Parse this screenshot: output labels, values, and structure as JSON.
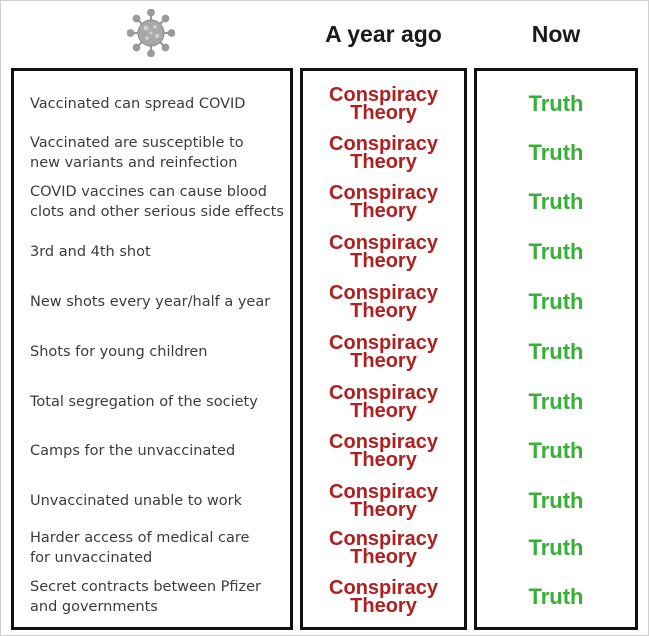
{
  "header": {
    "icon": "virus-icon",
    "col_before": "A year ago",
    "col_now": "Now"
  },
  "colors": {
    "conspiracy": "#b02020",
    "truth": "#36b036",
    "border": "#111111"
  },
  "rows": [
    {
      "label_1": "Vaccinated can spread COVID",
      "label_2": "",
      "before_1": "Conspiracy",
      "before_2": "Theory",
      "now": "Truth"
    },
    {
      "label_1": "Vaccinated are susceptible to",
      "label_2": "new variants and reinfection",
      "before_1": "Conspiracy",
      "before_2": "Theory",
      "now": "Truth"
    },
    {
      "label_1": "COVID vaccines can cause blood",
      "label_2": "clots and other serious side effects",
      "before_1": "Conspiracy",
      "before_2": "Theory",
      "now": "Truth"
    },
    {
      "label_1": "3rd and 4th shot",
      "label_2": "",
      "before_1": "Conspiracy",
      "before_2": "Theory",
      "now": "Truth"
    },
    {
      "label_1": "New shots every year/half a year",
      "label_2": "",
      "before_1": "Conspiracy",
      "before_2": "Theory",
      "now": "Truth"
    },
    {
      "label_1": "Shots for young children",
      "label_2": "",
      "before_1": "Conspiracy",
      "before_2": "Theory",
      "now": "Truth"
    },
    {
      "label_1": "Total segregation of the society",
      "label_2": "",
      "before_1": "Conspiracy",
      "before_2": "Theory",
      "now": "Truth"
    },
    {
      "label_1": "Camps for the unvaccinated",
      "label_2": "",
      "before_1": "Conspiracy",
      "before_2": "Theory",
      "now": "Truth"
    },
    {
      "label_1": "Unvaccinated unable to work",
      "label_2": "",
      "before_1": "Conspiracy",
      "before_2": "Theory",
      "now": "Truth"
    },
    {
      "label_1": "Harder access of medical care",
      "label_2": "for unvaccinated",
      "before_1": "Conspiracy",
      "before_2": "Theory",
      "now": "Truth"
    },
    {
      "label_1": "Secret contracts between Pfizer",
      "label_2": "and governments",
      "before_1": "Conspiracy",
      "before_2": "Theory",
      "now": "Truth"
    }
  ]
}
